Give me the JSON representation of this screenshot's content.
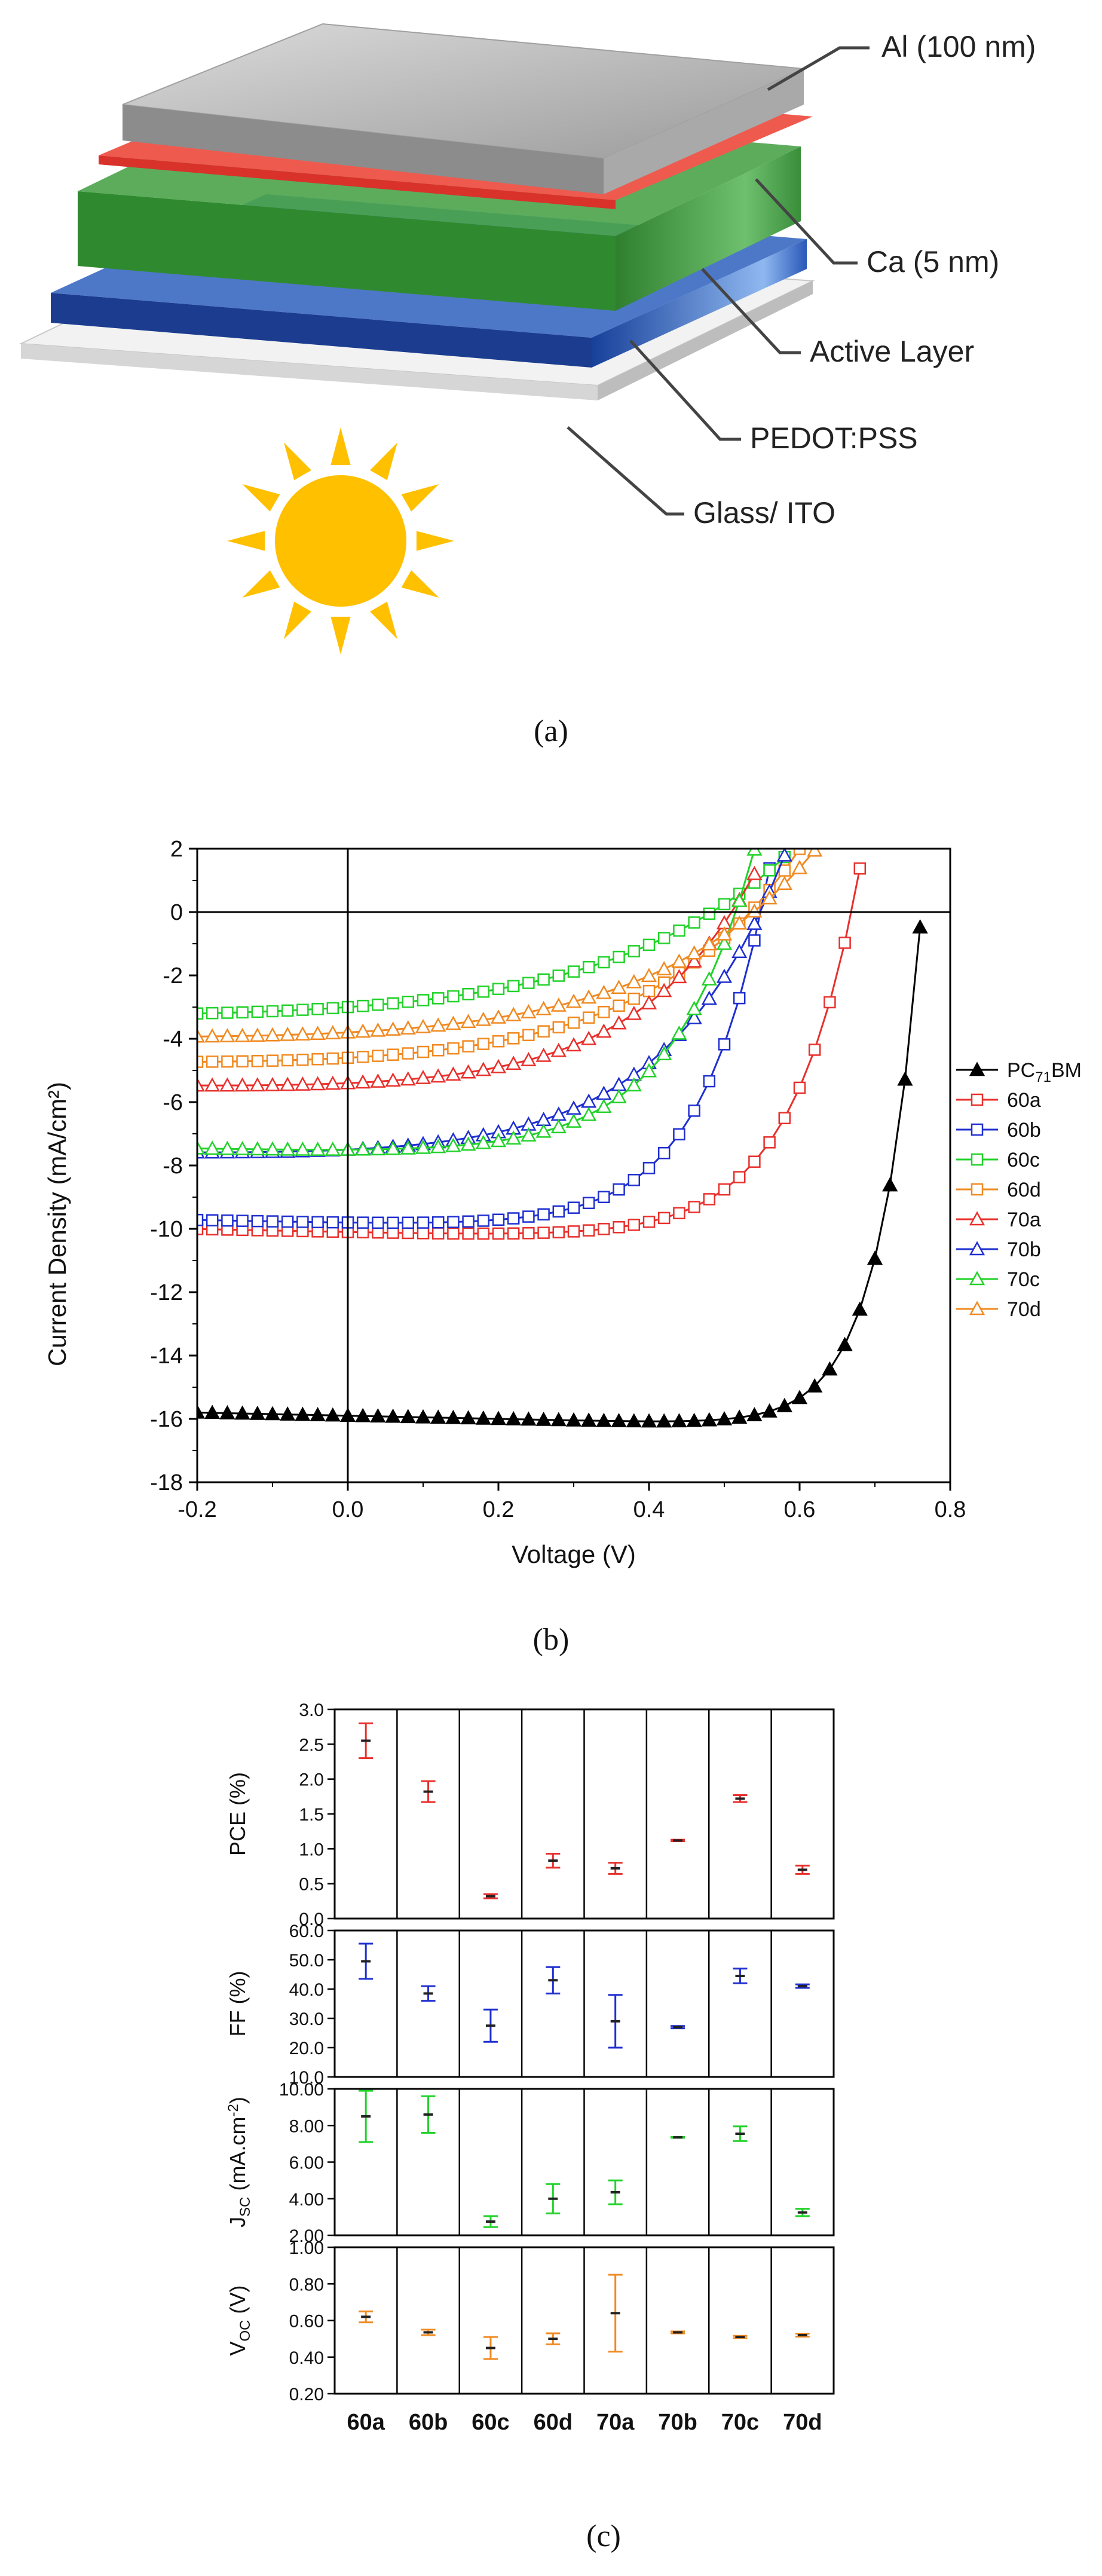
{
  "panel_a": {
    "caption": "(a)",
    "layers": [
      {
        "label": "Al (100 nm)",
        "color": "#b8b8b8"
      },
      {
        "label": "Ca (5 nm)",
        "color": "#e8483c"
      },
      {
        "label": "Active Layer",
        "color": "#3f9a3f"
      },
      {
        "label": "PEDOT:PSS",
        "color": "#1f4aa0"
      },
      {
        "label": "Glass/ ITO",
        "color": "#e0e0e0"
      }
    ],
    "sun_icon": "sun-icon",
    "sun_color": "#ffc000"
  },
  "panel_b": {
    "caption": "(b)"
  },
  "panel_c": {
    "caption": "(c)"
  },
  "chart_data": [
    {
      "type": "line",
      "xlabel": "Voltage (V)",
      "ylabel": "Current Density (mA/cm²)",
      "xlim": [
        -0.2,
        0.8
      ],
      "ylim": [
        -18,
        2
      ],
      "xticks": [
        "-0.2",
        "0.0",
        "0.2",
        "0.4",
        "0.6",
        "0.8"
      ],
      "yticks": [
        "2",
        "0",
        "-2",
        "-4",
        "-6",
        "-8",
        "-10",
        "-12",
        "-14",
        "-16",
        "-18"
      ],
      "legend_position": "right",
      "series": [
        {
          "name": "PC71BM",
          "name_main": "PC",
          "name_sub": "71",
          "name_tail": "BM",
          "color": "#000000",
          "marker": "filled-triangle",
          "Jsc": -15.8,
          "Voc": 0.76,
          "n": 0.055,
          "x_end": 0.78
        },
        {
          "name": "60a",
          "color": "#e8302c",
          "marker": "square",
          "Jsc": -10.0,
          "Voc": 0.665,
          "n": 0.09,
          "x_end": 0.7
        },
        {
          "name": "60b",
          "color": "#1f2fd0",
          "marker": "square",
          "Jsc": -9.7,
          "Voc": 0.545,
          "n": 0.09,
          "x_end": 0.6
        },
        {
          "name": "60c",
          "color": "#22d22a",
          "marker": "square",
          "Jsc": -2.9,
          "Voc": 0.46,
          "n": 0.25,
          "x_end": 0.6
        },
        {
          "name": "60d",
          "color": "#f08a22",
          "marker": "square",
          "Jsc": -4.5,
          "Voc": 0.52,
          "n": 0.2,
          "x_end": 0.63
        },
        {
          "name": "70a",
          "color": "#e8302c",
          "marker": "triangle",
          "Jsc": -5.3,
          "Voc": 0.5,
          "n": 0.16,
          "x_end": 0.56
        },
        {
          "name": "70b",
          "color": "#1f2fd0",
          "marker": "triangle",
          "Jsc": -7.4,
          "Voc": 0.54,
          "n": 0.16,
          "x_end": 0.64
        },
        {
          "name": "70c",
          "color": "#22d22a",
          "marker": "triangle",
          "Jsc": -7.4,
          "Voc": 0.51,
          "n": 0.11,
          "x_end": 0.58
        },
        {
          "name": "70d",
          "color": "#f08a22",
          "marker": "triangle",
          "Jsc": -3.7,
          "Voc": 0.52,
          "n": 0.22,
          "x_end": 0.64
        }
      ]
    },
    {
      "type": "scatter",
      "categories": [
        "60a",
        "60b",
        "60c",
        "60d",
        "70a",
        "70b",
        "70c",
        "70d"
      ],
      "panels": [
        {
          "ylabel": "PCE (%)",
          "color": "#e8302c",
          "ylim": [
            0,
            3
          ],
          "yticks": [
            "0.0",
            "0.5",
            "1.0",
            "1.5",
            "2.0",
            "2.5",
            "3.0"
          ],
          "values": [
            2.55,
            1.82,
            0.32,
            0.83,
            0.72,
            1.12,
            1.72,
            0.7
          ],
          "err": [
            0.25,
            0.15,
            0.03,
            0.1,
            0.08,
            0.01,
            0.05,
            0.06
          ]
        },
        {
          "ylabel": "FF (%)",
          "color": "#1f2fd0",
          "ylim": [
            10,
            60
          ],
          "yticks": [
            "10.0",
            "20.0",
            "30.0",
            "40.0",
            "50.0",
            "60.0"
          ],
          "values": [
            49.5,
            38.5,
            27.5,
            43.0,
            29.0,
            27.0,
            44.5,
            41.0
          ],
          "err": [
            6.0,
            2.5,
            5.5,
            4.5,
            9.0,
            0.4,
            2.5,
            0.6
          ]
        },
        {
          "ylabel_main": "J",
          "ylabel_sub": "SC",
          "ylabel_tail": " (mA.cm",
          "ylabel_sup": "-2",
          "ylabel_end": ")",
          "color": "#22d22a",
          "ylim": [
            2,
            10
          ],
          "yticks": [
            "2.00",
            "4.00",
            "6.00",
            "8.00",
            "10.00"
          ],
          "values": [
            8.5,
            8.6,
            2.75,
            4.0,
            4.35,
            7.35,
            7.55,
            3.25
          ],
          "err": [
            1.4,
            1.0,
            0.3,
            0.8,
            0.65,
            0.02,
            0.4,
            0.2
          ]
        },
        {
          "ylabel_main": "V",
          "ylabel_sub": "OC",
          "ylabel_tail": " (V)",
          "color": "#f08a22",
          "ylim": [
            0.2,
            1.0
          ],
          "yticks": [
            "0.20",
            "0.40",
            "0.60",
            "0.80",
            "1.00"
          ],
          "values": [
            0.62,
            0.535,
            0.45,
            0.5,
            0.64,
            0.535,
            0.51,
            0.52
          ],
          "err": [
            0.03,
            0.015,
            0.06,
            0.03,
            0.21,
            0.005,
            0.006,
            0.008
          ]
        }
      ]
    }
  ]
}
